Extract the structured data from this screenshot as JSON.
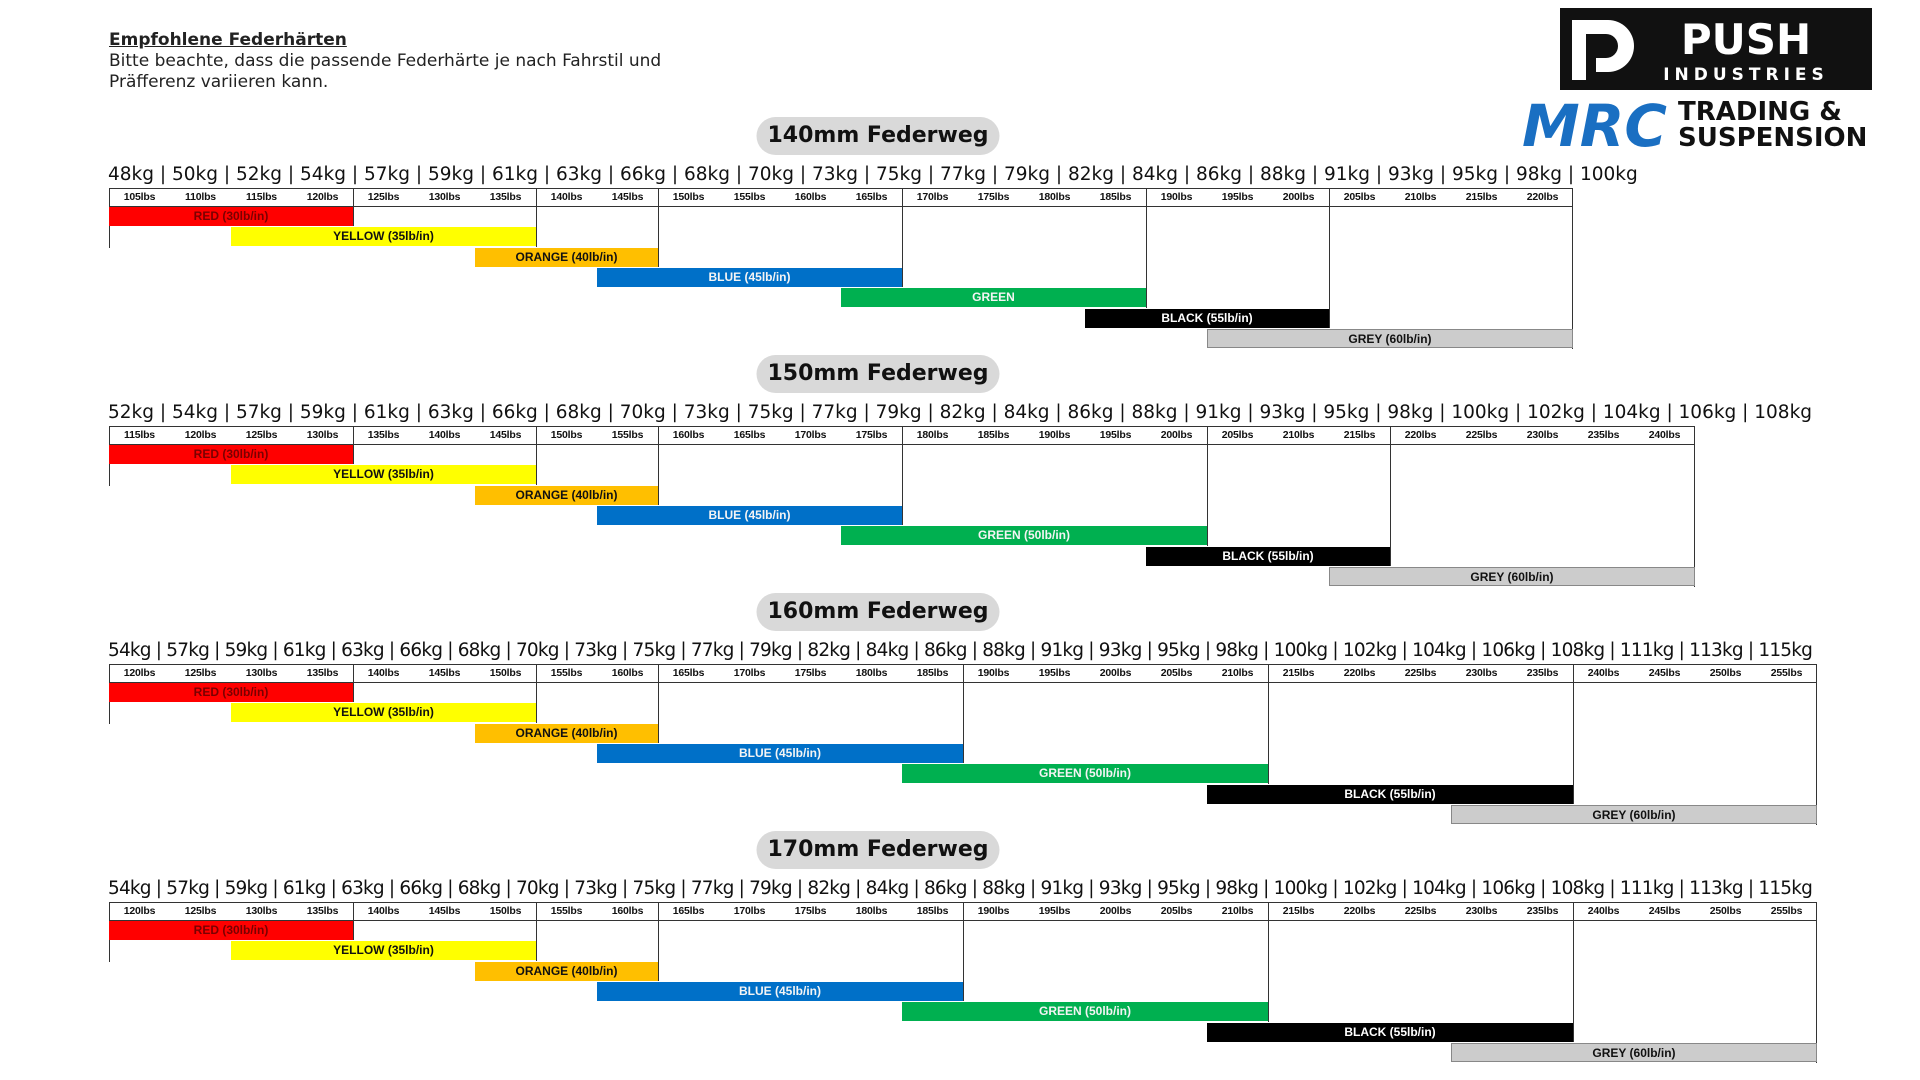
{
  "intro": {
    "heading": "Empfohlene Federhärten",
    "line1": "Bitte beachte, dass die passende Federhärte je nach Fahrstil und",
    "line2": "Präfferenz variieren kann."
  },
  "logo": {
    "push": "PUSH",
    "industries": "INDUSTRIES",
    "mrc": "MRC",
    "trading": "TRADING &",
    "suspension": "SUSPENSION",
    "colors": {
      "push_bg": "#111111",
      "mrc_blue": "#1a6fc2"
    }
  },
  "colors": {
    "RED": "#ff0000",
    "YELLOW": "#ffff00",
    "ORANGE": "#ffbf00",
    "BLUE": "#0070c8",
    "GREEN": "#00b050",
    "BLACK": "#000000",
    "GREY": "#cccccc"
  },
  "chart_data": [
    {
      "type": "table",
      "title": "140mm Federweg",
      "kg_labels": [
        "48kg",
        "50kg",
        "52kg",
        "54kg",
        "57kg",
        "59kg",
        "61kg",
        "63kg",
        "66kg",
        "68kg",
        "70kg",
        "73kg",
        "75kg",
        "77kg",
        "79kg",
        "82kg",
        "84kg",
        "86kg",
        "88kg",
        "91kg",
        "93kg",
        "95kg",
        "98kg",
        "100kg"
      ],
      "lbs_labels": [
        "105lbs",
        "110lbs",
        "115lbs",
        "120lbs",
        "125lbs",
        "130lbs",
        "135lbs",
        "140lbs",
        "145lbs",
        "150lbs",
        "155lbs",
        "160lbs",
        "165lbs",
        "170lbs",
        "175lbs",
        "180lbs",
        "185lbs",
        "190lbs",
        "195lbs",
        "200lbs",
        "205lbs",
        "210lbs",
        "215lbs",
        "220lbs"
      ],
      "springs": [
        {
          "color": "RED",
          "label": "RED (30lb/in)",
          "from_lbs": 105,
          "to_lbs": 120
        },
        {
          "color": "YELLOW",
          "label": "YELLOW (35lb/in)",
          "from_lbs": 115,
          "to_lbs": 135
        },
        {
          "color": "ORANGE",
          "label": "ORANGE (40lb/in)",
          "from_lbs": 135,
          "to_lbs": 145
        },
        {
          "color": "BLUE",
          "label": "BLUE (45lb/in)",
          "from_lbs": 145,
          "to_lbs": 165
        },
        {
          "color": "GREEN",
          "label": "GREEN",
          "from_lbs": 165,
          "to_lbs": 185
        },
        {
          "color": "BLACK",
          "label": "BLACK (55lb/in)",
          "from_lbs": 185,
          "to_lbs": 200
        },
        {
          "color": "GREY",
          "label": "GREY (60lb/in)",
          "from_lbs": 195,
          "to_lbs": 220
        }
      ]
    },
    {
      "type": "table",
      "title": "150mm Federweg",
      "kg_labels": [
        "52kg",
        "54kg",
        "57kg",
        "59kg",
        "61kg",
        "63kg",
        "66kg",
        "68kg",
        "70kg",
        "73kg",
        "75kg",
        "77kg",
        "79kg",
        "82kg",
        "84kg",
        "86kg",
        "88kg",
        "91kg",
        "93kg",
        "95kg",
        "98kg",
        "100kg",
        "102kg",
        "104kg",
        "106kg",
        "108kg"
      ],
      "lbs_labels": [
        "115lbs",
        "120lbs",
        "125lbs",
        "130lbs",
        "135lbs",
        "140lbs",
        "145lbs",
        "150lbs",
        "155lbs",
        "160lbs",
        "165lbs",
        "170lbs",
        "175lbs",
        "180lbs",
        "185lbs",
        "190lbs",
        "195lbs",
        "200lbs",
        "205lbs",
        "210lbs",
        "215lbs",
        "220lbs",
        "225lbs",
        "230lbs",
        "235lbs",
        "240lbs"
      ],
      "springs": [
        {
          "color": "RED",
          "label": "RED (30lb/in)",
          "from_lbs": 115,
          "to_lbs": 130
        },
        {
          "color": "YELLOW",
          "label": "YELLOW (35lb/in)",
          "from_lbs": 125,
          "to_lbs": 145
        },
        {
          "color": "ORANGE",
          "label": "ORANGE (40lb/in)",
          "from_lbs": 145,
          "to_lbs": 155
        },
        {
          "color": "BLUE",
          "label": "BLUE (45lb/in)",
          "from_lbs": 155,
          "to_lbs": 175
        },
        {
          "color": "GREEN",
          "label": "GREEN (50lb/in)",
          "from_lbs": 175,
          "to_lbs": 200
        },
        {
          "color": "BLACK",
          "label": "BLACK (55lb/in)",
          "from_lbs": 200,
          "to_lbs": 215
        },
        {
          "color": "GREY",
          "label": "GREY (60lb/in)",
          "from_lbs": 215,
          "to_lbs": 240
        }
      ]
    },
    {
      "type": "table",
      "title": "160mm Federweg",
      "kg_labels": [
        "54kg",
        "57kg",
        "59kg",
        "61kg",
        "63kg",
        "66kg",
        "68kg",
        "70kg",
        "73kg",
        "75kg",
        "77kg",
        "79kg",
        "82kg",
        "84kg",
        "86kg",
        "88kg",
        "91kg",
        "93kg",
        "95kg",
        "98kg",
        "100kg",
        "102kg",
        "104kg",
        "106kg",
        "108kg",
        "111kg",
        "113kg",
        "115kg"
      ],
      "lbs_labels": [
        "120lbs",
        "125lbs",
        "130lbs",
        "135lbs",
        "140lbs",
        "145lbs",
        "150lbs",
        "155lbs",
        "160lbs",
        "165lbs",
        "170lbs",
        "175lbs",
        "180lbs",
        "185lbs",
        "190lbs",
        "195lbs",
        "200lbs",
        "205lbs",
        "210lbs",
        "215lbs",
        "220lbs",
        "225lbs",
        "230lbs",
        "235lbs",
        "240lbs",
        "245lbs",
        "250lbs",
        "255lbs"
      ],
      "springs": [
        {
          "color": "RED",
          "label": "RED (30lb/in)",
          "from_lbs": 120,
          "to_lbs": 135
        },
        {
          "color": "YELLOW",
          "label": "YELLOW (35lb/in)",
          "from_lbs": 130,
          "to_lbs": 150
        },
        {
          "color": "ORANGE",
          "label": "ORANGE (40lb/in)",
          "from_lbs": 150,
          "to_lbs": 160
        },
        {
          "color": "BLUE",
          "label": "BLUE (45lb/in)",
          "from_lbs": 160,
          "to_lbs": 185
        },
        {
          "color": "GREEN",
          "label": "GREEN (50lb/in)",
          "from_lbs": 185,
          "to_lbs": 210
        },
        {
          "color": "BLACK",
          "label": "BLACK (55lb/in)",
          "from_lbs": 210,
          "to_lbs": 235
        },
        {
          "color": "GREY",
          "label": "GREY (60lb/in)",
          "from_lbs": 230,
          "to_lbs": 255
        }
      ]
    },
    {
      "type": "table",
      "title": "170mm Federweg",
      "kg_labels": [
        "54kg",
        "57kg",
        "59kg",
        "61kg",
        "63kg",
        "66kg",
        "68kg",
        "70kg",
        "73kg",
        "75kg",
        "77kg",
        "79kg",
        "82kg",
        "84kg",
        "86kg",
        "88kg",
        "91kg",
        "93kg",
        "95kg",
        "98kg",
        "100kg",
        "102kg",
        "104kg",
        "106kg",
        "108kg",
        "111kg",
        "113kg",
        "115kg"
      ],
      "lbs_labels": [
        "120lbs",
        "125lbs",
        "130lbs",
        "135lbs",
        "140lbs",
        "145lbs",
        "150lbs",
        "155lbs",
        "160lbs",
        "165lbs",
        "170lbs",
        "175lbs",
        "180lbs",
        "185lbs",
        "190lbs",
        "195lbs",
        "200lbs",
        "205lbs",
        "210lbs",
        "215lbs",
        "220lbs",
        "225lbs",
        "230lbs",
        "235lbs",
        "240lbs",
        "245lbs",
        "250lbs",
        "255lbs"
      ],
      "springs": [
        {
          "color": "RED",
          "label": "RED (30lb/in)",
          "from_lbs": 120,
          "to_lbs": 135
        },
        {
          "color": "YELLOW",
          "label": "YELLOW (35lb/in)",
          "from_lbs": 130,
          "to_lbs": 150
        },
        {
          "color": "ORANGE",
          "label": "ORANGE (40lb/in)",
          "from_lbs": 150,
          "to_lbs": 160
        },
        {
          "color": "BLUE",
          "label": "BLUE (45lb/in)",
          "from_lbs": 160,
          "to_lbs": 185
        },
        {
          "color": "GREEN",
          "label": "GREEN (50lb/in)",
          "from_lbs": 185,
          "to_lbs": 210
        },
        {
          "color": "BLACK",
          "label": "BLACK (55lb/in)",
          "from_lbs": 210,
          "to_lbs": 235
        },
        {
          "color": "GREY",
          "label": "GREY (60lb/in)",
          "from_lbs": 230,
          "to_lbs": 255
        }
      ]
    }
  ]
}
